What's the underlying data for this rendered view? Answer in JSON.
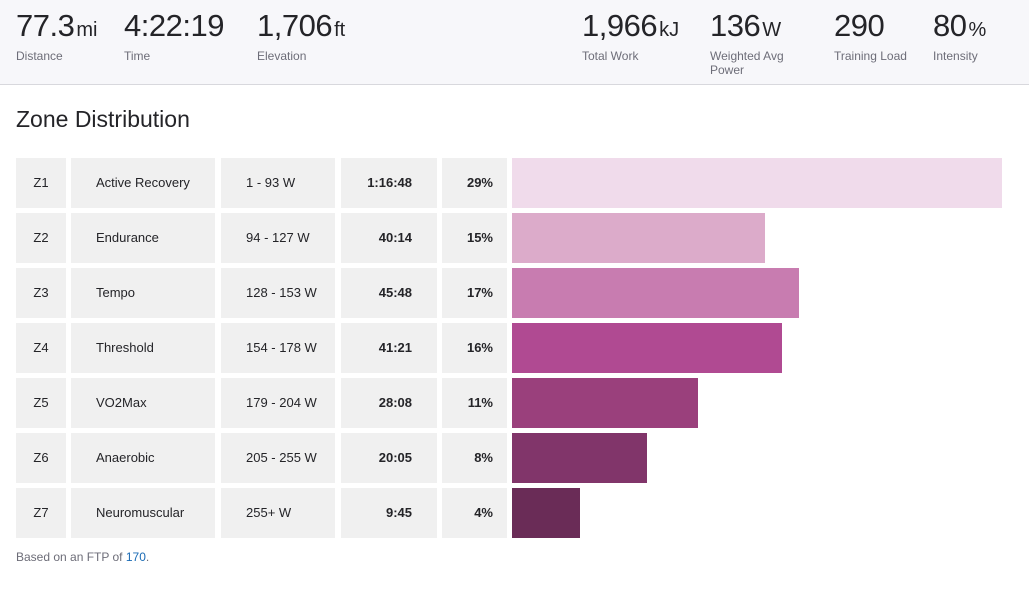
{
  "stats": [
    {
      "value": "77.3",
      "unit": "mi",
      "label": "Distance"
    },
    {
      "value": "4:22:19",
      "unit": "",
      "label": "Time"
    },
    {
      "value": "1,706",
      "unit": "ft",
      "label": "Elevation"
    },
    {
      "value": "1,966",
      "unit": "kJ",
      "label": "Total Work"
    },
    {
      "value": "136",
      "unit": "W",
      "label": "Weighted Avg Power"
    },
    {
      "value": "290",
      "unit": "",
      "label": "Training Load"
    },
    {
      "value": "80",
      "unit": "%",
      "label": "Intensity"
    }
  ],
  "section_title": "Zone Distribution",
  "zones": [
    {
      "zone": "Z1",
      "name": "Active Recovery",
      "range": "1 - 93 W",
      "time": "1:16:48",
      "percent": "29%",
      "pct_value": 29,
      "color": "#f0dbeb"
    },
    {
      "zone": "Z2",
      "name": "Endurance",
      "range": "94 - 127 W",
      "time": "40:14",
      "percent": "15%",
      "pct_value": 15,
      "color": "#dcabca"
    },
    {
      "zone": "Z3",
      "name": "Tempo",
      "range": "128 - 153 W",
      "time": "45:48",
      "percent": "17%",
      "pct_value": 17,
      "color": "#c87cb0"
    },
    {
      "zone": "Z4",
      "name": "Threshold",
      "range": "154 - 178 W",
      "time": "41:21",
      "percent": "16%",
      "pct_value": 16,
      "color": "#b04a92"
    },
    {
      "zone": "Z5",
      "name": "VO2Max",
      "range": "179 - 204 W",
      "time": "28:08",
      "percent": "11%",
      "pct_value": 11,
      "color": "#9a407c"
    },
    {
      "zone": "Z6",
      "name": "Anaerobic",
      "range": "205 - 255 W",
      "time": "20:05",
      "percent": "8%",
      "pct_value": 8,
      "color": "#81356a"
    },
    {
      "zone": "Z7",
      "name": "Neuromuscular",
      "range": "255+ W",
      "time": "9:45",
      "percent": "4%",
      "pct_value": 4,
      "color": "#6a2c57"
    }
  ],
  "footer": {
    "prefix": "Based on an FTP of ",
    "ftp_value": "170",
    "suffix": "."
  }
}
